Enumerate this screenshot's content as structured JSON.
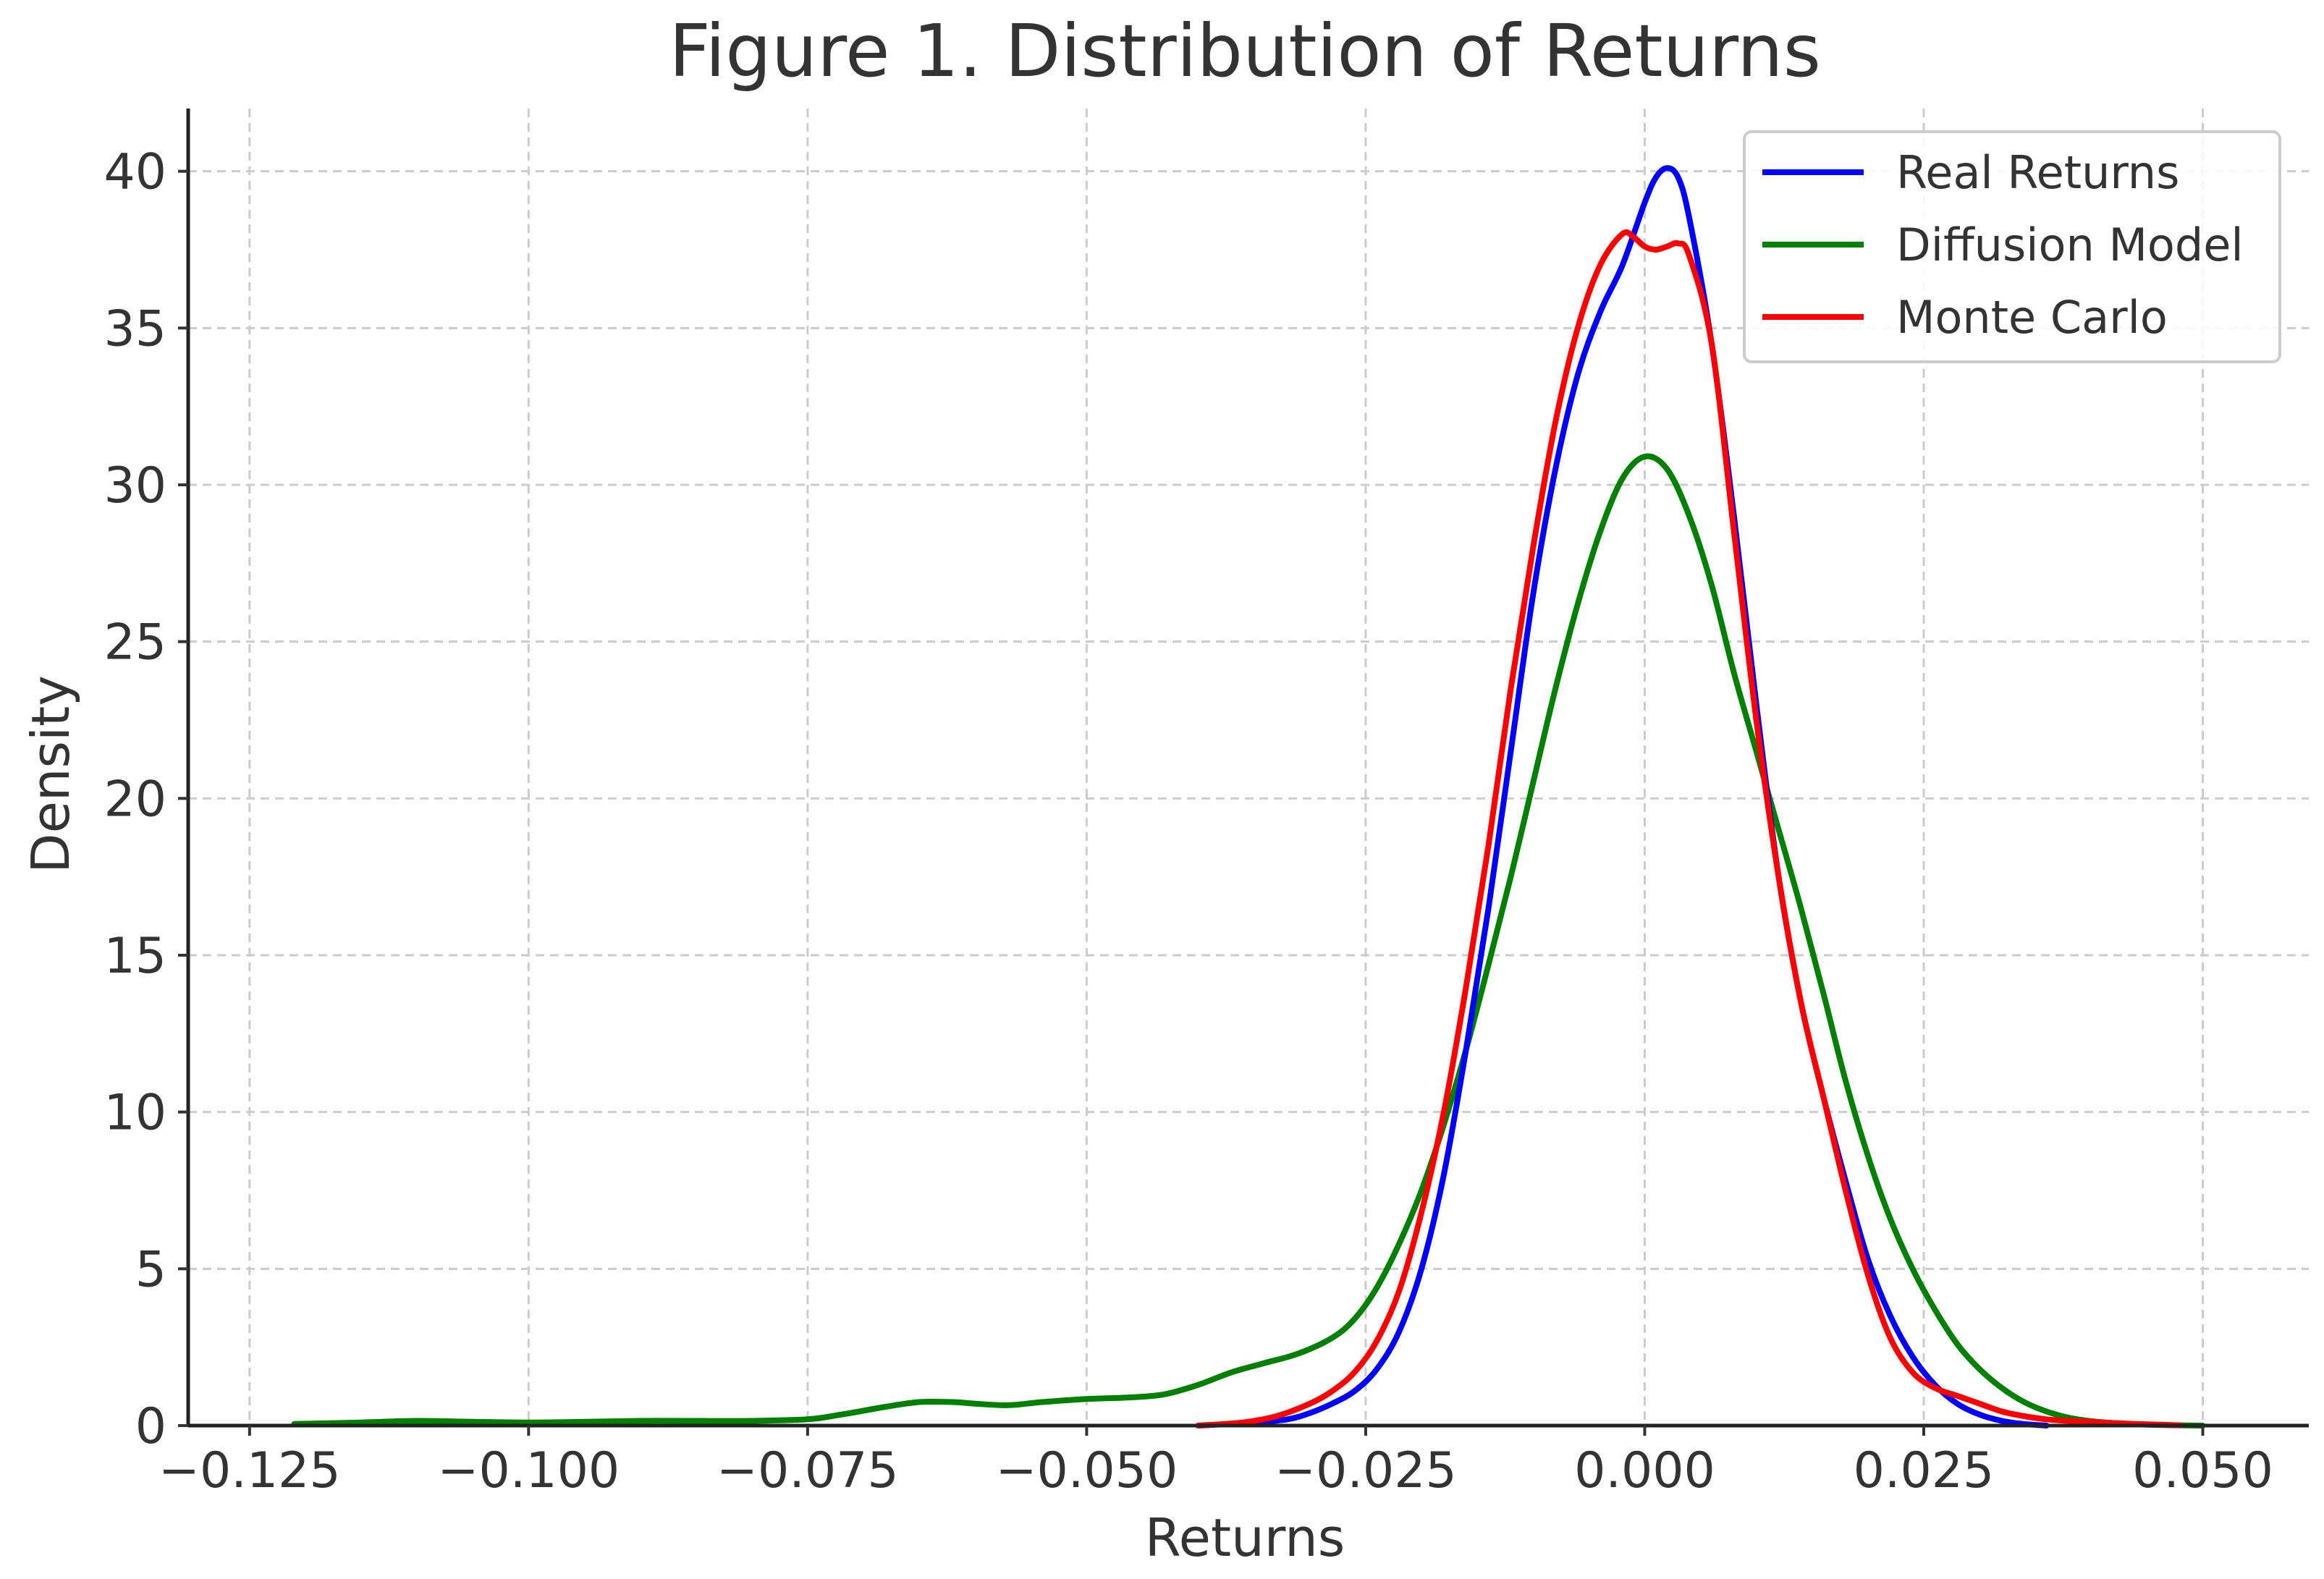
{
  "chart_data": {
    "type": "line",
    "title": "Figure 1. Distribution of Returns",
    "xlabel": "Returns",
    "ylabel": "Density",
    "xlim": [
      -0.1305,
      0.0595
    ],
    "ylim": [
      0,
      42
    ],
    "x_ticks": [
      {
        "value": -0.125,
        "label": "−0.125"
      },
      {
        "value": -0.1,
        "label": "−0.100"
      },
      {
        "value": -0.075,
        "label": "−0.075"
      },
      {
        "value": -0.05,
        "label": "−0.050"
      },
      {
        "value": -0.025,
        "label": "−0.025"
      },
      {
        "value": 0.0,
        "label": "0.000"
      },
      {
        "value": 0.025,
        "label": "0.025"
      },
      {
        "value": 0.05,
        "label": "0.050"
      }
    ],
    "y_ticks": [
      {
        "value": 0,
        "label": "0"
      },
      {
        "value": 5,
        "label": "5"
      },
      {
        "value": 10,
        "label": "10"
      },
      {
        "value": 15,
        "label": "15"
      },
      {
        "value": 20,
        "label": "20"
      },
      {
        "value": 25,
        "label": "25"
      },
      {
        "value": 30,
        "label": "30"
      },
      {
        "value": 35,
        "label": "35"
      },
      {
        "value": 40,
        "label": "40"
      }
    ],
    "grid": true,
    "legend_position": "top-right",
    "series": [
      {
        "name": "Real Returns",
        "color": "#0000ff",
        "points": [
          [
            -0.04,
            0.0
          ],
          [
            -0.035,
            0.1
          ],
          [
            -0.032,
            0.2
          ],
          [
            -0.03,
            0.4
          ],
          [
            -0.028,
            0.7
          ],
          [
            -0.026,
            1.1
          ],
          [
            -0.024,
            1.8
          ],
          [
            -0.022,
            3.0
          ],
          [
            -0.02,
            5.0
          ],
          [
            -0.018,
            8.0
          ],
          [
            -0.016,
            12.0
          ],
          [
            -0.014,
            16.5
          ],
          [
            -0.012,
            21.5
          ],
          [
            -0.01,
            26.5
          ],
          [
            -0.008,
            30.5
          ],
          [
            -0.006,
            33.5
          ],
          [
            -0.004,
            35.5
          ],
          [
            -0.002,
            37.0
          ],
          [
            0.0,
            39.0
          ],
          [
            0.001,
            39.8
          ],
          [
            0.002,
            40.1
          ],
          [
            0.003,
            39.8
          ],
          [
            0.004,
            38.5
          ],
          [
            0.006,
            34.5
          ],
          [
            0.008,
            29.0
          ],
          [
            0.01,
            23.0
          ],
          [
            0.012,
            17.5
          ],
          [
            0.014,
            13.5
          ],
          [
            0.016,
            10.5
          ],
          [
            0.018,
            7.8
          ],
          [
            0.02,
            5.3
          ],
          [
            0.022,
            3.5
          ],
          [
            0.024,
            2.2
          ],
          [
            0.026,
            1.3
          ],
          [
            0.028,
            0.7
          ],
          [
            0.03,
            0.35
          ],
          [
            0.032,
            0.15
          ],
          [
            0.034,
            0.05
          ],
          [
            0.036,
            0.0
          ]
        ]
      },
      {
        "name": "Diffusion Model",
        "color": "#008000",
        "points": [
          [
            -0.121,
            0.05
          ],
          [
            -0.115,
            0.1
          ],
          [
            -0.11,
            0.15
          ],
          [
            -0.105,
            0.12
          ],
          [
            -0.1,
            0.1
          ],
          [
            -0.095,
            0.12
          ],
          [
            -0.09,
            0.15
          ],
          [
            -0.085,
            0.15
          ],
          [
            -0.08,
            0.15
          ],
          [
            -0.075,
            0.2
          ],
          [
            -0.072,
            0.35
          ],
          [
            -0.068,
            0.6
          ],
          [
            -0.065,
            0.75
          ],
          [
            -0.062,
            0.75
          ],
          [
            -0.06,
            0.7
          ],
          [
            -0.057,
            0.65
          ],
          [
            -0.054,
            0.75
          ],
          [
            -0.05,
            0.85
          ],
          [
            -0.046,
            0.9
          ],
          [
            -0.043,
            1.0
          ],
          [
            -0.04,
            1.3
          ],
          [
            -0.037,
            1.7
          ],
          [
            -0.034,
            2.0
          ],
          [
            -0.031,
            2.3
          ],
          [
            -0.028,
            2.8
          ],
          [
            -0.026,
            3.4
          ],
          [
            -0.024,
            4.4
          ],
          [
            -0.022,
            5.8
          ],
          [
            -0.02,
            7.5
          ],
          [
            -0.018,
            9.6
          ],
          [
            -0.016,
            12.0
          ],
          [
            -0.014,
            14.7
          ],
          [
            -0.012,
            17.5
          ],
          [
            -0.01,
            20.5
          ],
          [
            -0.008,
            23.5
          ],
          [
            -0.006,
            26.2
          ],
          [
            -0.004,
            28.5
          ],
          [
            -0.002,
            30.2
          ],
          [
            0.0,
            30.9
          ],
          [
            0.002,
            30.5
          ],
          [
            0.004,
            29.0
          ],
          [
            0.006,
            26.8
          ],
          [
            0.008,
            24.0
          ],
          [
            0.01,
            21.5
          ],
          [
            0.012,
            19.0
          ],
          [
            0.014,
            16.5
          ],
          [
            0.016,
            13.8
          ],
          [
            0.018,
            11.0
          ],
          [
            0.02,
            8.6
          ],
          [
            0.022,
            6.6
          ],
          [
            0.024,
            5.0
          ],
          [
            0.026,
            3.7
          ],
          [
            0.028,
            2.6
          ],
          [
            0.03,
            1.8
          ],
          [
            0.032,
            1.2
          ],
          [
            0.034,
            0.75
          ],
          [
            0.036,
            0.45
          ],
          [
            0.038,
            0.25
          ],
          [
            0.04,
            0.14
          ],
          [
            0.042,
            0.08
          ],
          [
            0.045,
            0.03
          ],
          [
            0.05,
            0.0
          ]
        ]
      },
      {
        "name": "Monte Carlo",
        "color": "#ff0000",
        "points": [
          [
            -0.04,
            0.0
          ],
          [
            -0.036,
            0.1
          ],
          [
            -0.033,
            0.3
          ],
          [
            -0.03,
            0.7
          ],
          [
            -0.028,
            1.1
          ],
          [
            -0.026,
            1.7
          ],
          [
            -0.024,
            2.7
          ],
          [
            -0.022,
            4.3
          ],
          [
            -0.02,
            6.8
          ],
          [
            -0.018,
            10.0
          ],
          [
            -0.016,
            14.0
          ],
          [
            -0.014,
            18.5
          ],
          [
            -0.012,
            23.5
          ],
          [
            -0.01,
            28.0
          ],
          [
            -0.008,
            32.0
          ],
          [
            -0.006,
            35.0
          ],
          [
            -0.004,
            37.0
          ],
          [
            -0.002,
            38.0
          ],
          [
            -0.001,
            37.9
          ],
          [
            0.0,
            37.6
          ],
          [
            0.001,
            37.5
          ],
          [
            0.002,
            37.6
          ],
          [
            0.003,
            37.7
          ],
          [
            0.004,
            37.3
          ],
          [
            0.006,
            34.5
          ],
          [
            0.008,
            28.5
          ],
          [
            0.01,
            22.5
          ],
          [
            0.012,
            17.5
          ],
          [
            0.014,
            13.5
          ],
          [
            0.016,
            10.5
          ],
          [
            0.018,
            7.5
          ],
          [
            0.02,
            4.8
          ],
          [
            0.022,
            2.8
          ],
          [
            0.024,
            1.7
          ],
          [
            0.026,
            1.2
          ],
          [
            0.028,
            0.95
          ],
          [
            0.03,
            0.7
          ],
          [
            0.032,
            0.45
          ],
          [
            0.034,
            0.3
          ],
          [
            0.036,
            0.2
          ],
          [
            0.038,
            0.15
          ],
          [
            0.04,
            0.12
          ],
          [
            0.042,
            0.08
          ],
          [
            0.045,
            0.04
          ],
          [
            0.048,
            0.01
          ]
        ]
      }
    ]
  }
}
